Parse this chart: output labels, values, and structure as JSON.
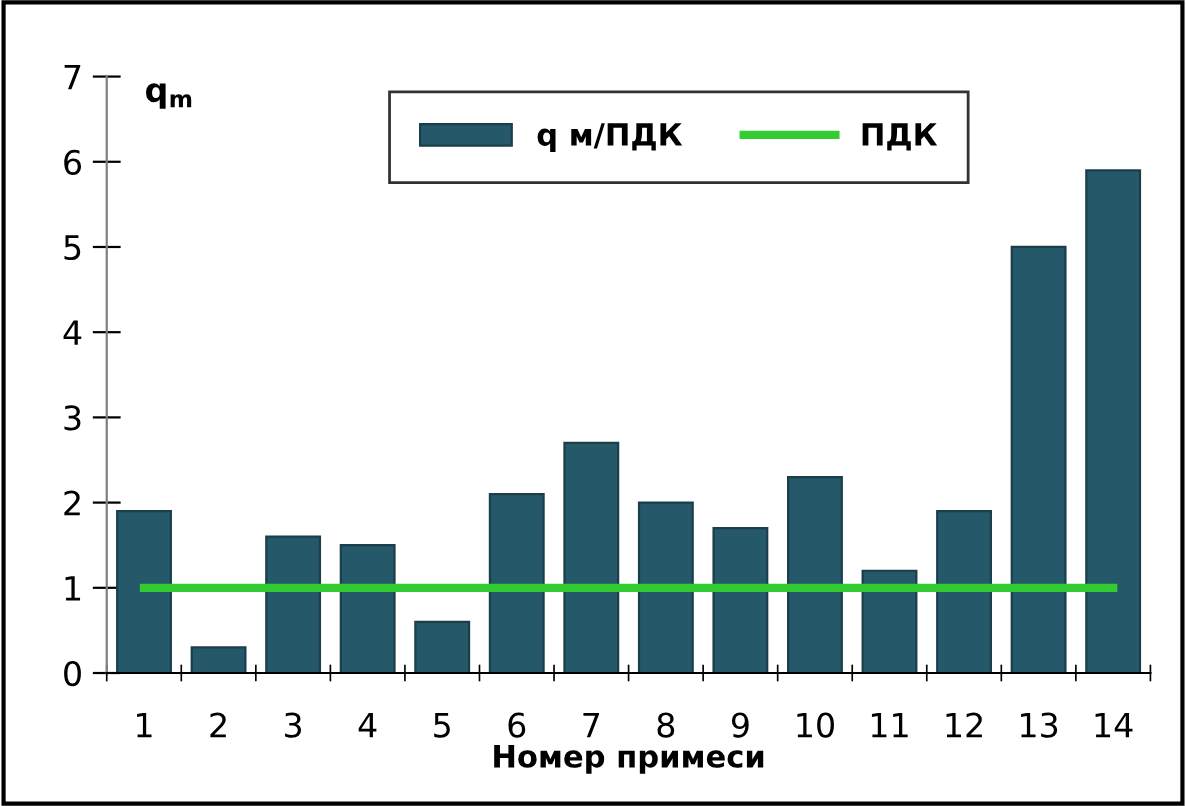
{
  "chart_data": {
    "type": "bar",
    "xlabel": "Номер примеси",
    "ylabel": "q$_{m}$",
    "categories": [
      "1",
      "2",
      "3",
      "4",
      "5",
      "6",
      "7",
      "8",
      "9",
      "10",
      "11",
      "12",
      "13",
      "14"
    ],
    "series": [
      {
        "name": "q м/ПДК",
        "color": "#25596a",
        "values": [
          1.9,
          0.3,
          1.6,
          1.5,
          0.6,
          2.1,
          2.7,
          2.0,
          1.7,
          2.3,
          1.2,
          1.9,
          5.0,
          5.9
        ]
      },
      {
        "name": "ПДК",
        "type": "line",
        "color": "#33cc33",
        "values": [
          1,
          1,
          1,
          1,
          1,
          1,
          1,
          1,
          1,
          1,
          1,
          1,
          1,
          1
        ]
      }
    ],
    "ylim": [
      0,
      7
    ],
    "yticks": [
      0,
      1,
      2,
      3,
      4,
      5,
      6,
      7
    ],
    "grid": false,
    "legend": "top right",
    "marker": "none",
    "line_style": "solid"
  }
}
